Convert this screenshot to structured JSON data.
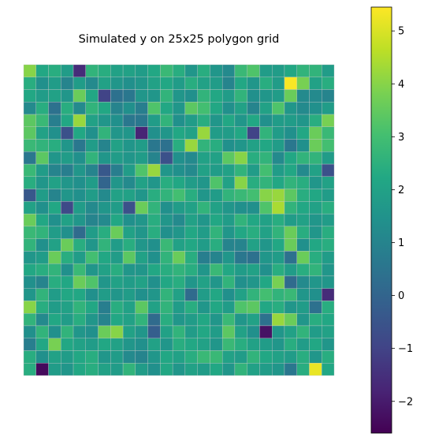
{
  "chart_data": {
    "type": "heatmap",
    "title": "Simulated y on 25x25 polygon grid",
    "rows": 25,
    "cols": 25,
    "colormap": "viridis",
    "colorbar": {
      "min": -2.6,
      "max": 5.45,
      "ticks": [
        -2,
        -1,
        0,
        1,
        2,
        3,
        4,
        5
      ],
      "tick_labels": [
        "−2",
        "−1",
        "0",
        "1",
        "2",
        "3",
        "4",
        "5"
      ]
    },
    "cell_edge_color": "#c8c8c8",
    "values": [
      [
        4.0,
        2.2,
        2.4,
        1.8,
        -1.6,
        2.6,
        2.4,
        2.0,
        2.0,
        1.8,
        2.2,
        2.8,
        2.4,
        1.6,
        2.4,
        1.6,
        1.2,
        2.8,
        3.2,
        1.8,
        1.8,
        2.2,
        2.6,
        2.6,
        1.8
      ],
      [
        2.4,
        1.4,
        1.8,
        1.0,
        1.8,
        1.2,
        2.0,
        1.6,
        1.4,
        1.6,
        2.0,
        2.2,
        1.8,
        2.4,
        2.0,
        1.8,
        1.0,
        2.2,
        1.6,
        2.4,
        1.8,
        5.4,
        3.8,
        2.0,
        2.4
      ],
      [
        2.2,
        1.8,
        2.0,
        1.6,
        3.6,
        2.2,
        -1.0,
        0.4,
        0.6,
        1.6,
        1.6,
        2.6,
        1.6,
        1.4,
        2.6,
        2.2,
        1.8,
        2.6,
        1.4,
        1.6,
        1.8,
        3.6,
        1.2,
        1.2,
        1.0
      ],
      [
        1.2,
        2.4,
        0.4,
        2.4,
        1.2,
        2.6,
        2.2,
        1.0,
        1.4,
        0.8,
        3.2,
        2.2,
        1.6,
        3.4,
        3.0,
        2.2,
        1.4,
        2.0,
        1.0,
        2.0,
        3.2,
        1.6,
        1.2,
        1.4,
        1.8
      ],
      [
        3.4,
        2.8,
        0.8,
        2.2,
        4.2,
        2.0,
        1.6,
        1.4,
        0.6,
        0.6,
        1.8,
        2.6,
        1.4,
        1.8,
        2.4,
        1.6,
        2.2,
        1.6,
        2.2,
        1.4,
        1.8,
        1.8,
        1.6,
        2.4,
        3.8
      ],
      [
        3.4,
        2.0,
        1.4,
        -0.6,
        2.2,
        1.4,
        2.6,
        1.6,
        1.6,
        -1.8,
        1.4,
        1.6,
        2.2,
        2.0,
        4.2,
        1.8,
        1.8,
        2.2,
        -1.0,
        2.6,
        1.8,
        1.4,
        2.2,
        3.6,
        2.8
      ],
      [
        2.8,
        2.6,
        2.4,
        1.6,
        0.6,
        1.8,
        1.0,
        2.0,
        1.6,
        1.8,
        0.6,
        0.4,
        2.4,
        4.2,
        2.6,
        2.4,
        1.4,
        1.6,
        2.0,
        2.2,
        1.8,
        0.6,
        1.4,
        3.6,
        3.0
      ],
      [
        0.6,
        3.4,
        1.6,
        1.8,
        1.4,
        2.6,
        1.6,
        1.8,
        1.6,
        1.8,
        1.0,
        -0.6,
        1.4,
        1.2,
        2.0,
        2.0,
        3.4,
        4.0,
        2.4,
        2.6,
        1.2,
        2.2,
        2.6,
        2.6,
        1.8
      ],
      [
        2.8,
        1.8,
        1.0,
        0.8,
        1.6,
        1.0,
        -0.4,
        0.8,
        1.8,
        3.2,
        4.2,
        1.6,
        1.4,
        1.2,
        2.0,
        1.8,
        2.0,
        2.6,
        1.8,
        3.0,
        1.8,
        2.2,
        1.2,
        2.0,
        -0.6
      ],
      [
        2.4,
        1.6,
        2.0,
        1.6,
        1.4,
        1.8,
        0.0,
        1.6,
        1.2,
        2.0,
        1.6,
        2.4,
        2.2,
        1.8,
        1.6,
        3.2,
        2.0,
        4.0,
        2.4,
        2.6,
        2.2,
        2.6,
        2.4,
        1.6,
        2.0
      ],
      [
        -0.4,
        1.8,
        1.0,
        1.6,
        1.4,
        1.8,
        1.2,
        2.0,
        2.0,
        1.6,
        2.4,
        2.6,
        3.0,
        2.4,
        1.6,
        1.8,
        2.6,
        2.8,
        3.0,
        4.0,
        4.2,
        3.4,
        2.4,
        2.2,
        1.8
      ],
      [
        2.0,
        1.4,
        2.2,
        -0.8,
        1.8,
        1.2,
        1.6,
        1.8,
        -0.6,
        3.6,
        2.6,
        1.4,
        1.8,
        2.0,
        2.6,
        2.0,
        1.6,
        1.4,
        1.4,
        3.2,
        4.4,
        2.6,
        2.2,
        2.0,
        2.4
      ],
      [
        3.6,
        2.2,
        1.4,
        2.0,
        1.6,
        1.0,
        1.2,
        2.2,
        1.4,
        1.6,
        2.4,
        1.6,
        1.2,
        2.0,
        1.6,
        2.2,
        1.8,
        2.6,
        2.2,
        2.0,
        2.4,
        1.8,
        2.0,
        1.6,
        1.8
      ],
      [
        2.8,
        2.6,
        1.8,
        1.4,
        0.2,
        1.8,
        2.4,
        3.6,
        2.0,
        1.6,
        2.4,
        1.4,
        1.6,
        2.2,
        1.8,
        2.6,
        1.6,
        2.2,
        2.4,
        2.0,
        2.6,
        3.6,
        2.4,
        1.6,
        2.4
      ],
      [
        2.6,
        1.4,
        2.0,
        3.6,
        2.4,
        1.6,
        2.6,
        1.8,
        2.4,
        1.6,
        1.4,
        2.8,
        2.0,
        2.2,
        1.8,
        2.4,
        1.0,
        1.0,
        2.0,
        1.6,
        2.2,
        3.6,
        1.4,
        2.2,
        2.4
      ],
      [
        1.6,
        1.8,
        3.6,
        2.4,
        1.8,
        3.0,
        2.2,
        1.8,
        3.4,
        2.0,
        1.4,
        2.6,
        3.6,
        2.4,
        0.8,
        1.0,
        1.6,
        0.6,
        0.4,
        1.6,
        1.8,
        0.4,
        3.6,
        2.4,
        1.8
      ],
      [
        2.2,
        2.4,
        2.6,
        1.4,
        2.8,
        1.6,
        2.0,
        2.4,
        1.6,
        1.6,
        2.2,
        2.4,
        2.6,
        2.4,
        1.6,
        2.8,
        2.2,
        1.8,
        2.0,
        1.4,
        2.4,
        1.8,
        2.4,
        2.6,
        1.6
      ],
      [
        1.4,
        1.0,
        2.4,
        2.2,
        3.6,
        3.2,
        1.6,
        2.0,
        1.8,
        2.0,
        1.4,
        2.2,
        2.4,
        1.6,
        2.0,
        1.6,
        2.6,
        1.4,
        1.6,
        2.2,
        3.8,
        0.2,
        1.2,
        1.6,
        1.6
      ],
      [
        1.6,
        2.6,
        1.8,
        2.2,
        2.2,
        1.4,
        1.8,
        1.6,
        1.8,
        1.4,
        1.6,
        2.6,
        2.0,
        0.2,
        1.8,
        2.2,
        1.4,
        2.0,
        2.6,
        3.0,
        2.6,
        2.8,
        1.6,
        1.4,
        -1.6
      ],
      [
        4.0,
        2.4,
        1.8,
        2.0,
        2.6,
        2.2,
        0.8,
        2.4,
        2.0,
        3.4,
        2.0,
        2.6,
        1.8,
        2.4,
        1.6,
        2.2,
        1.8,
        3.2,
        3.4,
        2.2,
        2.4,
        1.6,
        1.8,
        0.4,
        2.4
      ],
      [
        2.6,
        1.2,
        2.2,
        1.8,
        2.4,
        1.6,
        1.0,
        2.2,
        2.0,
        2.6,
        0.2,
        2.4,
        1.6,
        1.8,
        2.2,
        1.6,
        2.8,
        1.6,
        2.0,
        0.4,
        4.2,
        3.6,
        1.6,
        2.4,
        2.2
      ],
      [
        1.4,
        2.6,
        1.4,
        2.6,
        1.6,
        1.4,
        3.6,
        4.0,
        2.0,
        1.6,
        -0.2,
        2.0,
        2.6,
        1.8,
        2.2,
        1.8,
        3.4,
        2.0,
        1.4,
        -2.2,
        1.6,
        2.0,
        2.6,
        1.8,
        2.0
      ],
      [
        0.8,
        2.2,
        3.8,
        2.2,
        2.0,
        1.8,
        2.2,
        2.0,
        1.6,
        1.4,
        2.0,
        1.6,
        2.4,
        2.2,
        2.0,
        1.6,
        2.8,
        2.4,
        2.0,
        1.8,
        1.6,
        2.4,
        1.8,
        2.2,
        1.6
      ],
      [
        2.4,
        1.4,
        2.0,
        1.8,
        2.2,
        2.4,
        1.6,
        1.8,
        1.2,
        1.0,
        1.6,
        2.2,
        2.0,
        2.4,
        2.8,
        2.8,
        2.0,
        1.8,
        2.6,
        2.2,
        2.0,
        1.8,
        2.4,
        1.6,
        2.4
      ],
      [
        2.4,
        -2.4,
        1.8,
        1.6,
        2.2,
        2.4,
        2.0,
        1.8,
        2.6,
        1.8,
        1.4,
        2.2,
        1.6,
        2.0,
        1.8,
        2.2,
        1.6,
        2.6,
        2.0,
        1.8,
        1.6,
        0.6,
        2.4,
        5.2,
        2.2
      ]
    ]
  }
}
